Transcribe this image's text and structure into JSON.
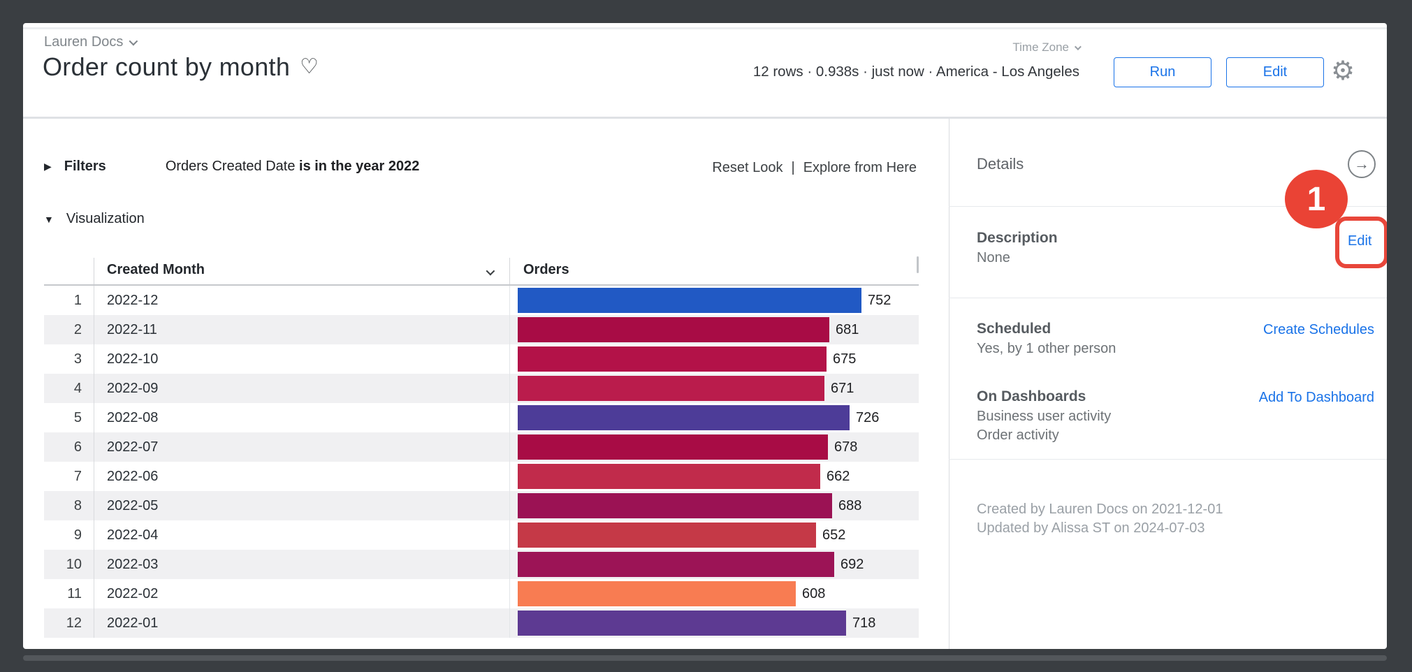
{
  "header": {
    "breadcrumb": "Lauren Docs",
    "title": "Order count by month",
    "heart_icon": "♡",
    "timezone_label": "Time Zone",
    "meta": "12 rows · 0.938s · just now · America - Los Angeles",
    "run_label": "Run",
    "edit_label": "Edit",
    "gear_icon": "⚙",
    "accent_color": "#1a73e8"
  },
  "filters": {
    "section_label": "Filters",
    "expand_icon": "▶",
    "field": "Orders Created Date ",
    "condition": "is in the year 2022",
    "reset_label": "Reset Look",
    "separator": "|",
    "explore_label": "Explore from Here"
  },
  "visualization": {
    "section_label": "Visualization",
    "collapse_icon": "▼"
  },
  "table": {
    "columns": {
      "month": "Created Month",
      "orders": "Orders"
    },
    "rows": [
      {
        "num": "1",
        "month": "2022-12",
        "orders": 752,
        "color": "#2159c4"
      },
      {
        "num": "2",
        "month": "2022-11",
        "orders": 681,
        "color": "#a80c45"
      },
      {
        "num": "3",
        "month": "2022-10",
        "orders": 675,
        "color": "#b31248"
      },
      {
        "num": "4",
        "month": "2022-09",
        "orders": 671,
        "color": "#ba1c4c"
      },
      {
        "num": "5",
        "month": "2022-08",
        "orders": 726,
        "color": "#4d3c98"
      },
      {
        "num": "6",
        "month": "2022-07",
        "orders": 678,
        "color": "#a80c45"
      },
      {
        "num": "7",
        "month": "2022-06",
        "orders": 662,
        "color": "#c12b4b"
      },
      {
        "num": "8",
        "month": "2022-05",
        "orders": 688,
        "color": "#9b1254"
      },
      {
        "num": "9",
        "month": "2022-04",
        "orders": 652,
        "color": "#c53947"
      },
      {
        "num": "10",
        "month": "2022-03",
        "orders": 692,
        "color": "#9c1456"
      },
      {
        "num": "11",
        "month": "2022-02",
        "orders": 608,
        "color": "#f87c52"
      },
      {
        "num": "12",
        "month": "2022-01",
        "orders": 718,
        "color": "#5d3a92"
      }
    ]
  },
  "chart_data": {
    "type": "bar",
    "orientation": "horizontal",
    "title": "Order count by month",
    "xlabel": "Orders",
    "ylabel": "Created Month",
    "categories": [
      "2022-12",
      "2022-11",
      "2022-10",
      "2022-09",
      "2022-08",
      "2022-07",
      "2022-06",
      "2022-05",
      "2022-04",
      "2022-03",
      "2022-02",
      "2022-01"
    ],
    "values": [
      752,
      681,
      675,
      671,
      726,
      678,
      662,
      688,
      652,
      692,
      608,
      718
    ],
    "bar_colors": [
      "#2159c4",
      "#a80c45",
      "#b31248",
      "#ba1c4c",
      "#4d3c98",
      "#a80c45",
      "#c12b4b",
      "#9b1254",
      "#c53947",
      "#9c1456",
      "#f87c52",
      "#5d3a92"
    ],
    "value_labels_shown": true,
    "axis_shown": false
  },
  "details": {
    "section_title": "Details",
    "open_icon": "→",
    "description_label": "Description",
    "description_value": "None",
    "edit_label": "Edit",
    "scheduled_label": "Scheduled",
    "scheduled_value": "Yes, by 1 other person",
    "create_schedules_label": "Create Schedules",
    "dashboards_label": "On Dashboards",
    "dashboards_items": [
      "Business user activity",
      "Order activity"
    ],
    "add_to_dashboard_label": "Add To Dashboard",
    "created_line": "Created by Lauren Docs on 2021-12-01",
    "updated_line": "Updated by Alissa ST on 2024-07-03"
  },
  "annotation": {
    "step_number": "1",
    "highlight_color": "#ea4335"
  }
}
